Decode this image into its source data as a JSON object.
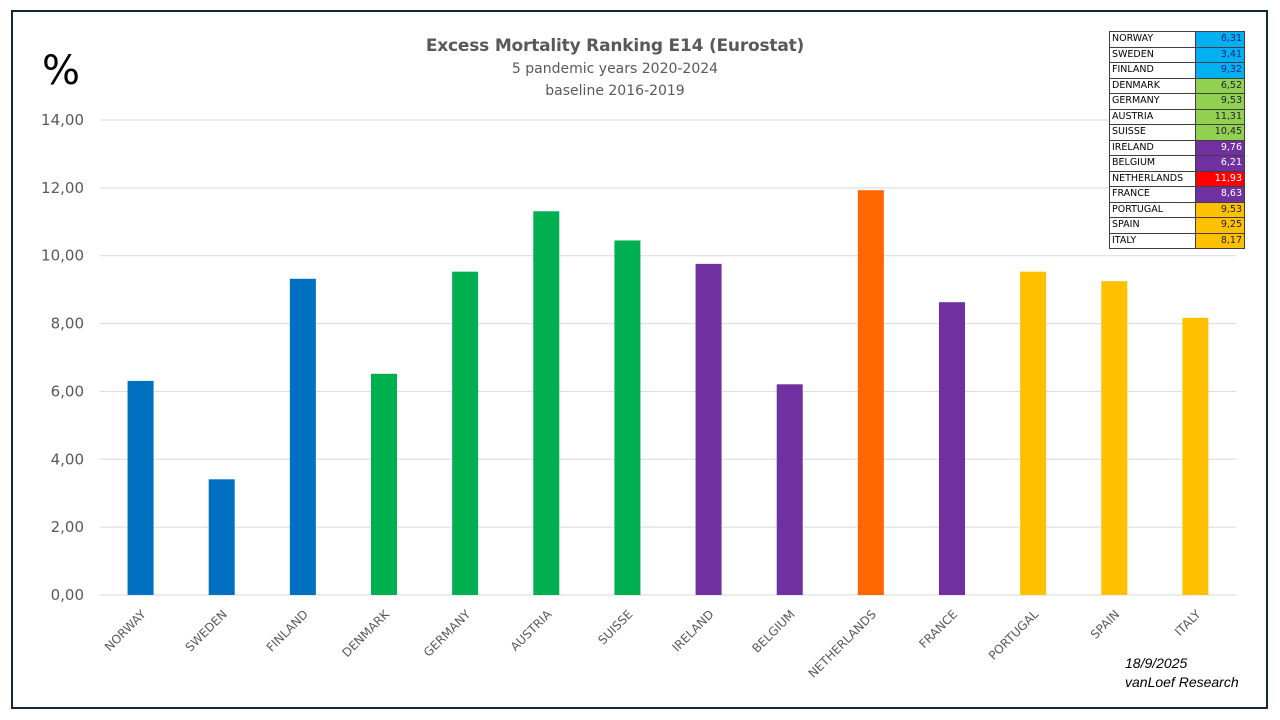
{
  "chart_data": {
    "type": "bar",
    "title": "Excess Mortality Ranking E14 (Eurostat)",
    "subtitle_lines": [
      "5 pandemic years 2020-2024",
      "baseline 2016-2019"
    ],
    "ylabel": "%",
    "xlabel": "",
    "ylim": [
      0,
      14
    ],
    "ytick_step": 2,
    "ytick_labels": [
      "0,00",
      "2,00",
      "4,00",
      "6,00",
      "8,00",
      "10,00",
      "12,00",
      "14,00"
    ],
    "grid": true,
    "categories": [
      "NORWAY",
      "SWEDEN",
      "FINLAND",
      "DENMARK",
      "GERMANY",
      "AUSTRIA",
      "SUISSE",
      "IRELAND",
      "BELGIUM",
      "NETHERLANDS",
      "FRANCE",
      "PORTUGAL",
      "SPAIN",
      "ITALY"
    ],
    "values": [
      6.31,
      3.41,
      9.32,
      6.52,
      9.53,
      11.31,
      10.45,
      9.76,
      6.21,
      11.93,
      8.63,
      9.53,
      9.25,
      8.17
    ],
    "bar_colors": [
      "#0070c0",
      "#0070c0",
      "#0070c0",
      "#00b050",
      "#00b050",
      "#00b050",
      "#00b050",
      "#7030a0",
      "#7030a0",
      "#ff6600",
      "#7030a0",
      "#ffc000",
      "#ffc000",
      "#ffc000"
    ],
    "legend_table": {
      "placement": "top-right",
      "rows": [
        {
          "country": "NORWAY",
          "value": "6,31",
          "color": "#00b0f0",
          "text_color": "#1f1f7a"
        },
        {
          "country": "SWEDEN",
          "value": "3,41",
          "color": "#00b0f0",
          "text_color": "#1f1f7a"
        },
        {
          "country": "FINLAND",
          "value": "9,32",
          "color": "#00b0f0",
          "text_color": "#1f1f7a"
        },
        {
          "country": "DENMARK",
          "value": "6,52",
          "color": "#92d050",
          "text_color": "#1f1f3f"
        },
        {
          "country": "GERMANY",
          "value": "9,53",
          "color": "#92d050",
          "text_color": "#1f1f3f"
        },
        {
          "country": "AUSTRIA",
          "value": "11,31",
          "color": "#92d050",
          "text_color": "#1f1f3f"
        },
        {
          "country": "SUISSE",
          "value": "10,45",
          "color": "#92d050",
          "text_color": "#1f1f3f"
        },
        {
          "country": "IRELAND",
          "value": "9,76",
          "color": "#7030a0",
          "text_color": "#ffffff"
        },
        {
          "country": "BELGIUM",
          "value": "6,21",
          "color": "#7030a0",
          "text_color": "#ffffff"
        },
        {
          "country": "NETHERLANDS",
          "value": "11,93",
          "color": "#ff0000",
          "text_color": "#ffffff"
        },
        {
          "country": "FRANCE",
          "value": "8,63",
          "color": "#7030a0",
          "text_color": "#ffffff"
        },
        {
          "country": "PORTUGAL",
          "value": "9,53",
          "color": "#ffc000",
          "text_color": "#1f1f3f"
        },
        {
          "country": "SPAIN",
          "value": "9,25",
          "color": "#ffc000",
          "text_color": "#1f1f3f"
        },
        {
          "country": "ITALY",
          "value": "8,17",
          "color": "#ffc000",
          "text_color": "#1f1f3f"
        }
      ]
    },
    "annotations": [
      "18/9/2025",
      "vanLoef Research"
    ]
  },
  "footer": {
    "date": "18/9/2025",
    "author": "vanLoef Research"
  }
}
